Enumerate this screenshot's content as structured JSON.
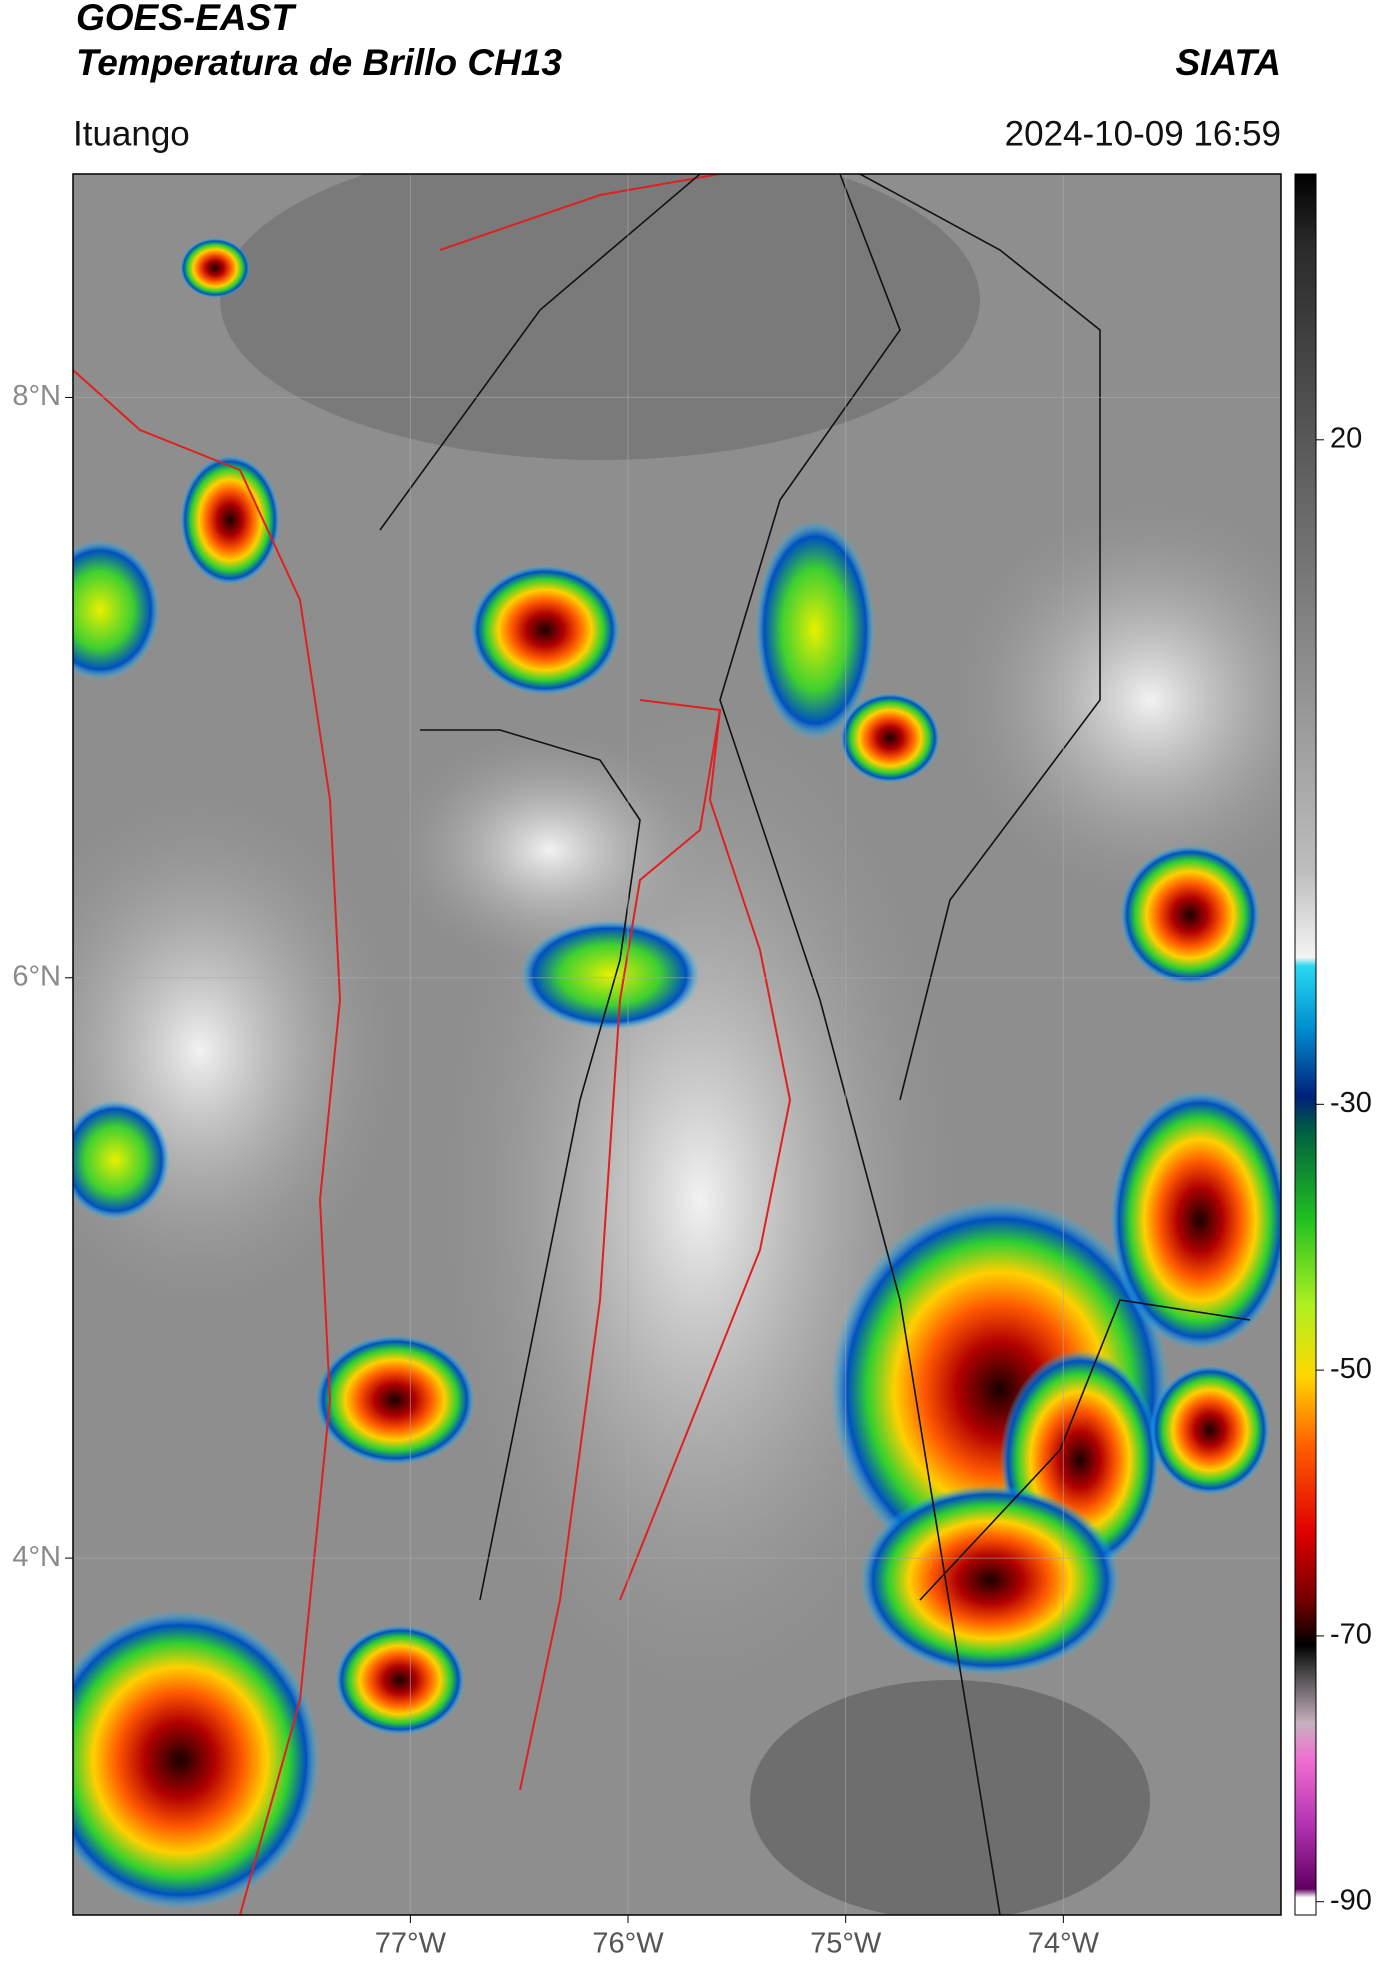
{
  "header": {
    "satellite": "GOES-EAST",
    "product": "Temperatura de Brillo CH13",
    "organization": "SIATA",
    "location": "Ituango",
    "datetime": "2024-10-09 16:59"
  },
  "map": {
    "xlim": [
      -78.55,
      -73.0
    ],
    "ylim": [
      2.77,
      8.77
    ],
    "xticks": [
      {
        "value": -77,
        "label": "77°W"
      },
      {
        "value": -76,
        "label": "76°W"
      },
      {
        "value": -75,
        "label": "75°W"
      },
      {
        "value": -74,
        "label": "74°W"
      }
    ],
    "yticks": [
      {
        "value": 8,
        "label": "8°N"
      },
      {
        "value": 6,
        "label": "6°N"
      },
      {
        "value": 4,
        "label": "4°N"
      }
    ],
    "colorbar": {
      "lim": [
        -91,
        40
      ],
      "ticks": [
        20,
        -30,
        -50,
        -70,
        -90
      ]
    }
  }
}
